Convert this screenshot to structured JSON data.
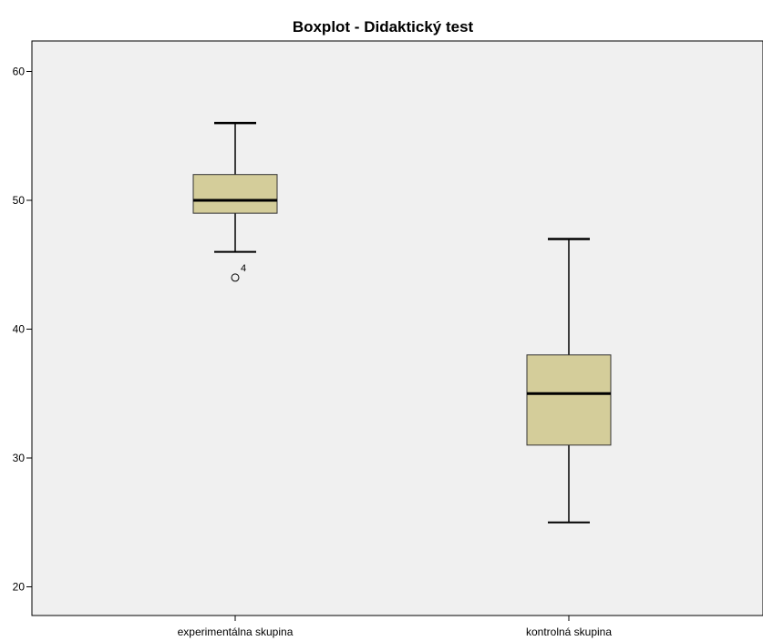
{
  "chart_data": {
    "type": "boxplot",
    "title": "Boxplot - Didaktický test",
    "xlabel": "",
    "ylabel": "",
    "ylim": [
      18,
      63
    ],
    "yticks": [
      20,
      30,
      40,
      50,
      60
    ],
    "grid": false,
    "legend": "none",
    "categories": [
      "experimentálna skupina",
      "kontrolná skupina"
    ],
    "boxes": [
      {
        "category": "experimentálna skupina",
        "min": 46,
        "q1": 49,
        "median": 50,
        "q3": 52,
        "max": 56,
        "outliers": [
          {
            "value": 44,
            "label": "4"
          }
        ]
      },
      {
        "category": "kontrolná skupina",
        "min": 25,
        "q1": 31,
        "median": 35,
        "q3": 38,
        "max": 47,
        "outliers": []
      }
    ],
    "colors": {
      "box_fill": "#d4cd9a",
      "plot_background": "#f0f0f0",
      "stroke": "#000000"
    }
  }
}
